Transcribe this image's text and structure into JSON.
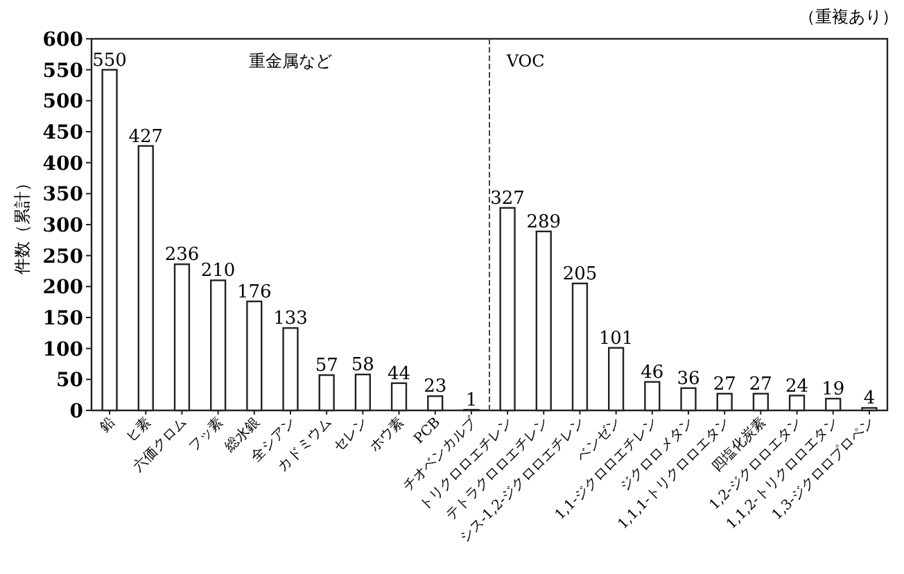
{
  "chart_data": {
    "type": "bar",
    "ylabel": "件数（累計）",
    "categories": [
      "鉛",
      "ヒ素",
      "六価クロム",
      "フッ素",
      "総水銀",
      "全シアン",
      "カドミウム",
      "セレン",
      "ホウ素",
      "PCB",
      "チオベンカルブ",
      "トリクロロエチレン",
      "テトラクロロエチレン",
      "シス-1,2-ジクロロエチレン",
      "ベンゼン",
      "1,1-ジクロロエチレン",
      "ジクロロメタン",
      "1,1,1-トリクロロエタン",
      "四塩化炭素",
      "1,2-ジクロロエタン",
      "1,1,2-トリクロロエタン",
      "1,3-ジクロロプロペン"
    ],
    "values": [
      550,
      427,
      236,
      210,
      176,
      133,
      57,
      58,
      44,
      23,
      1,
      327,
      289,
      205,
      101,
      46,
      36,
      27,
      27,
      24,
      19,
      4
    ],
    "color": "#ffffff",
    "data_labels": true,
    "ylim": [
      0,
      600
    ],
    "yticks": [
      0,
      50,
      100,
      150,
      200,
      250,
      300,
      350,
      400,
      450,
      500,
      550,
      600
    ],
    "annotations": [
      "重金属など",
      "VOC",
      "（重複あり）"
    ]
  }
}
